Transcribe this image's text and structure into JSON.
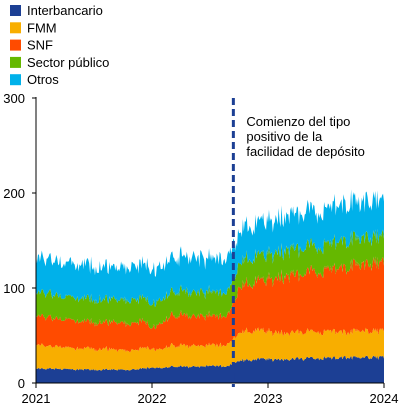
{
  "chart_data": {
    "type": "area",
    "stacked": true,
    "title": "",
    "xlabel": "",
    "ylabel": "",
    "ylim": [
      0,
      300
    ],
    "yticks": [
      0,
      100,
      200,
      300
    ],
    "xlim": [
      "2021-01-01",
      "2024-01-01"
    ],
    "xticks": [
      "2021",
      "2022",
      "2023",
      "2024"
    ],
    "grid": false,
    "legend_position": "top-left",
    "x": [
      "2021-01",
      "2021-02",
      "2021-03",
      "2021-04",
      "2021-05",
      "2021-06",
      "2021-07",
      "2021-08",
      "2021-09",
      "2021-10",
      "2021-11",
      "2021-12",
      "2022-01",
      "2022-02",
      "2022-03",
      "2022-04",
      "2022-05",
      "2022-06",
      "2022-07",
      "2022-08",
      "2022-09",
      "2022-10",
      "2022-11",
      "2022-12",
      "2023-01",
      "2023-02",
      "2023-03",
      "2023-04",
      "2023-05",
      "2023-06",
      "2023-07",
      "2023-08",
      "2023-09",
      "2023-10",
      "2023-11",
      "2023-12"
    ],
    "series": [
      {
        "name": "Interbancario",
        "color": "#1c3f94",
        "values": [
          15,
          15,
          15,
          15,
          14,
          14,
          14,
          14,
          14,
          14,
          14,
          15,
          16,
          16,
          17,
          17,
          17,
          17,
          18,
          18,
          18,
          24,
          24,
          25,
          25,
          25,
          25,
          25,
          26,
          26,
          26,
          26,
          27,
          27,
          27,
          27
        ]
      },
      {
        "name": "FMM",
        "color": "#f8ae00",
        "values": [
          25,
          24,
          24,
          23,
          22,
          22,
          22,
          22,
          21,
          21,
          20,
          21,
          20,
          20,
          22,
          22,
          22,
          22,
          22,
          22,
          23,
          30,
          30,
          30,
          29,
          28,
          28,
          28,
          28,
          28,
          28,
          28,
          27,
          28,
          28,
          28
        ]
      },
      {
        "name": "SNF",
        "color": "#ff4b00",
        "values": [
          30,
          30,
          30,
          29,
          29,
          28,
          28,
          28,
          29,
          28,
          28,
          29,
          22,
          28,
          32,
          32,
          31,
          31,
          31,
          31,
          31,
          48,
          50,
          52,
          55,
          58,
          60,
          60,
          62,
          63,
          65,
          65,
          68,
          70,
          70,
          72
        ]
      },
      {
        "name": "Sector público",
        "color": "#65b800",
        "values": [
          24,
          25,
          25,
          24,
          24,
          24,
          24,
          24,
          24,
          24,
          24,
          24,
          25,
          25,
          25,
          25,
          25,
          25,
          25,
          25,
          25,
          26,
          26,
          26,
          26,
          27,
          27,
          27,
          27,
          27,
          27,
          28,
          28,
          28,
          28,
          28
        ]
      },
      {
        "name": "Otros",
        "color": "#00b1ea",
        "values": [
          36,
          36,
          36,
          35,
          35,
          35,
          35,
          34,
          34,
          34,
          34,
          35,
          36,
          36,
          36,
          36,
          36,
          36,
          36,
          36,
          36,
          34,
          34,
          34,
          35,
          35,
          36,
          36,
          37,
          37,
          37,
          38,
          38,
          38,
          38,
          38
        ]
      }
    ],
    "annotations": [
      {
        "text_lines": [
          "Comienzo del tipo",
          "positivo de la",
          "facilidad de depósito"
        ],
        "x": "2022-09-14",
        "style": "dashed-vertical-line",
        "color": "#1c3f94"
      }
    ]
  }
}
